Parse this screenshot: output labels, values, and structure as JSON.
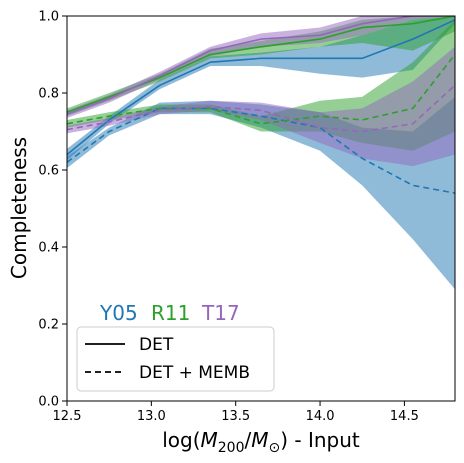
{
  "chart_data": {
    "type": "line",
    "xlabel": "log(M_200/M_⊙) - Input",
    "ylabel": "Completeness",
    "xlim": [
      12.5,
      14.8
    ],
    "ylim": [
      0.0,
      1.0
    ],
    "xticks": [
      "12.5",
      "13.0",
      "13.5",
      "14.0",
      "14.5"
    ],
    "yticks": [
      "0.0",
      "0.2",
      "0.4",
      "0.6",
      "0.8",
      "1.0"
    ],
    "grid": false,
    "x": [
      12.5,
      12.75,
      13.05,
      13.35,
      13.65,
      14.0,
      14.25,
      14.55,
      14.8
    ],
    "series": [
      {
        "name": "Y05",
        "variant": "DET",
        "color": "#1f77b4",
        "values": [
          0.64,
          0.73,
          0.82,
          0.88,
          0.89,
          0.89,
          0.89,
          0.94,
          0.99
        ],
        "lower": [
          0.625,
          0.72,
          0.81,
          0.87,
          0.87,
          0.85,
          0.84,
          0.86,
          0.98
        ],
        "upper": [
          0.655,
          0.74,
          0.835,
          0.895,
          0.905,
          0.92,
          0.95,
          0.99,
          1.0
        ]
      },
      {
        "name": "R11",
        "variant": "DET",
        "color": "#2ca02c",
        "values": [
          0.75,
          0.79,
          0.84,
          0.9,
          0.92,
          0.94,
          0.97,
          0.98,
          1.0
        ],
        "lower": [
          0.74,
          0.78,
          0.83,
          0.89,
          0.9,
          0.92,
          0.93,
          0.91,
          0.96
        ],
        "upper": [
          0.76,
          0.8,
          0.85,
          0.915,
          0.935,
          0.96,
          0.99,
          1.0,
          1.0
        ]
      },
      {
        "name": "T17",
        "variant": "DET",
        "color": "#9467bd",
        "values": [
          0.745,
          0.785,
          0.845,
          0.91,
          0.94,
          0.95,
          0.98,
          1.0,
          1.0
        ],
        "lower": [
          0.735,
          0.775,
          0.835,
          0.895,
          0.92,
          0.93,
          0.95,
          0.99,
          1.0
        ],
        "upper": [
          0.755,
          0.795,
          0.855,
          0.92,
          0.955,
          0.97,
          1.0,
          1.0,
          1.0
        ]
      },
      {
        "name": "Y05",
        "variant": "DET + MEMB",
        "color": "#1f77b4",
        "values": [
          0.62,
          0.7,
          0.76,
          0.76,
          0.74,
          0.71,
          0.63,
          0.56,
          0.54
        ],
        "lower": [
          0.605,
          0.69,
          0.745,
          0.745,
          0.71,
          0.65,
          0.56,
          0.42,
          0.29
        ],
        "upper": [
          0.635,
          0.71,
          0.775,
          0.78,
          0.77,
          0.75,
          0.71,
          0.7,
          0.79
        ]
      },
      {
        "name": "R11",
        "variant": "DET + MEMB",
        "color": "#2ca02c",
        "values": [
          0.72,
          0.74,
          0.76,
          0.76,
          0.72,
          0.74,
          0.73,
          0.76,
          0.9
        ],
        "lower": [
          0.71,
          0.73,
          0.75,
          0.75,
          0.7,
          0.7,
          0.67,
          0.65,
          0.7
        ],
        "upper": [
          0.73,
          0.75,
          0.77,
          0.77,
          0.74,
          0.78,
          0.79,
          0.88,
          0.99
        ]
      },
      {
        "name": "T17",
        "variant": "DET + MEMB",
        "color": "#9467bd",
        "values": [
          0.705,
          0.725,
          0.755,
          0.765,
          0.755,
          0.71,
          0.7,
          0.72,
          0.82
        ],
        "lower": [
          0.695,
          0.715,
          0.745,
          0.755,
          0.73,
          0.67,
          0.63,
          0.61,
          0.64
        ],
        "upper": [
          0.715,
          0.735,
          0.765,
          0.78,
          0.775,
          0.75,
          0.76,
          0.83,
          0.92
        ]
      }
    ],
    "legend_labels": [
      {
        "text": "Y05",
        "color": "#1f77b4"
      },
      {
        "text": "R11",
        "color": "#2ca02c"
      },
      {
        "text": "T17",
        "color": "#9467bd"
      }
    ],
    "legend": {
      "placement": "lower-left",
      "entries": [
        {
          "label": "DET",
          "style": "solid"
        },
        {
          "label": "DET + MEMB",
          "style": "dashed"
        }
      ]
    }
  }
}
